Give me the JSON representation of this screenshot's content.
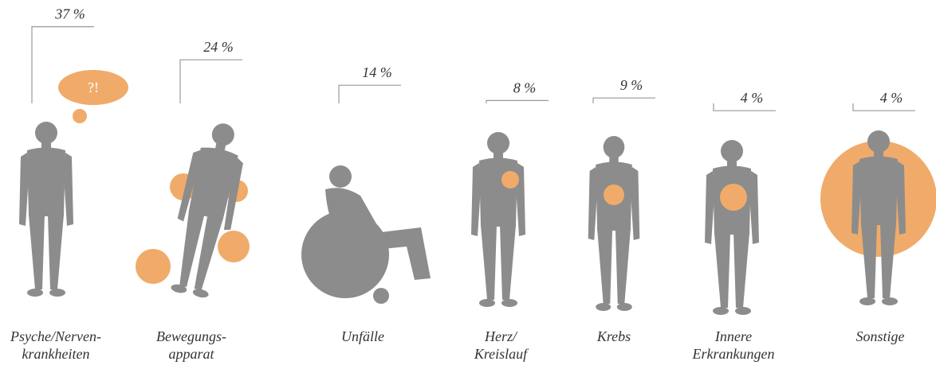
{
  "chart_data": {
    "type": "pictogram",
    "categories": [
      [
        "Psyche/Nerven-",
        "krankheiten"
      ],
      [
        "Bewegungs-",
        "apparat"
      ],
      [
        "Unfälle"
      ],
      [
        "Herz/",
        "Kreislauf"
      ],
      [
        "Krebs"
      ],
      [
        "Innere",
        "Erkrankungen"
      ],
      [
        "Sonstige"
      ]
    ],
    "values": [
      37,
      24,
      14,
      8,
      9,
      4,
      4
    ],
    "value_labels": [
      "37 %",
      "24 %",
      "14 %",
      "8 %",
      "9 %",
      "4 %",
      "4 %"
    ],
    "annotation": "?!",
    "color": "#8c8c8c",
    "accent": "#f0ab6a"
  }
}
